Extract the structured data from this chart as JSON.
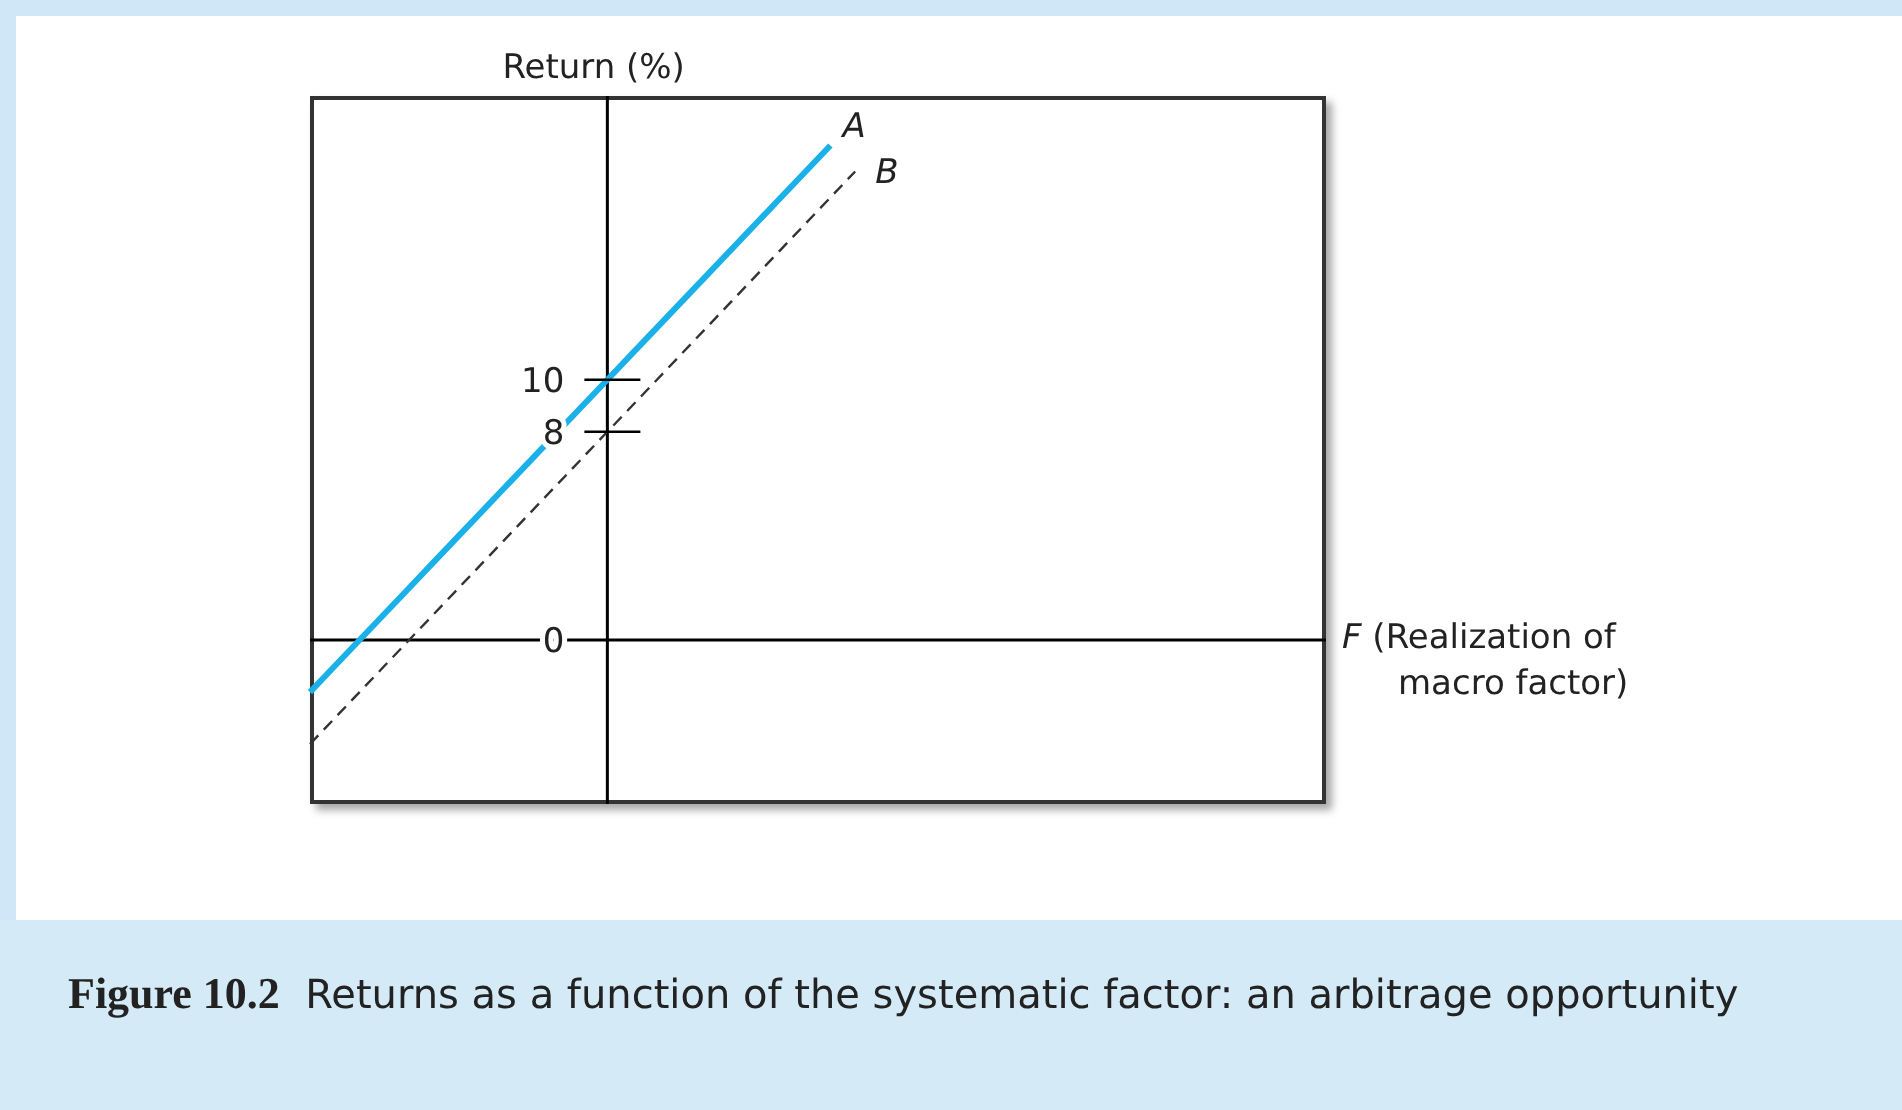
{
  "chart_data": {
    "type": "line",
    "title": "Figure 10.2  Returns as a function of the systematic factor: an arbitrage opportunity",
    "xlabel": "F (Realization of macro factor)",
    "ylabel": "Return (%)",
    "ylim": [
      -6.3,
      20.9
    ],
    "yticks": [
      0,
      8,
      10
    ],
    "marker": "none",
    "categories": [
      null,
      null,
      null,
      null,
      null,
      null,
      null,
      null,
      null,
      null,
      null,
      null,
      null,
      null,
      null,
      null,
      null,
      null,
      null,
      null,
      null,
      null,
      null,
      null,
      null,
      null,
      null,
      null,
      null,
      null,
      null,
      null,
      null,
      null,
      null,
      null,
      null,
      null,
      null,
      null,
      null,
      null
    ],
    "series": [
      {
        "name": "A",
        "color": "#1ab0e8",
        "line_style": "solid",
        "values": [
          -2,
          -1,
          0,
          1,
          2,
          3,
          4,
          5,
          6,
          7,
          8,
          9,
          10,
          11,
          12,
          13,
          14,
          15,
          16,
          17,
          18,
          19,
          null,
          null,
          null,
          null,
          null,
          null,
          null,
          null,
          null,
          null,
          null,
          null,
          null,
          null,
          null,
          null,
          null,
          null,
          null,
          null
        ]
      },
      {
        "name": "B",
        "color": "#333333",
        "line_style": "dashed",
        "values": [
          -4,
          -3,
          -2,
          -1,
          0,
          1,
          2,
          3,
          4,
          5,
          6,
          7,
          8,
          9,
          10,
          11,
          12,
          13,
          14,
          15,
          16,
          17,
          18,
          null,
          null,
          null,
          null,
          null,
          null,
          null,
          null,
          null,
          null,
          null,
          null,
          null,
          null,
          null,
          null,
          null,
          null,
          null
        ]
      }
    ]
  }
}
